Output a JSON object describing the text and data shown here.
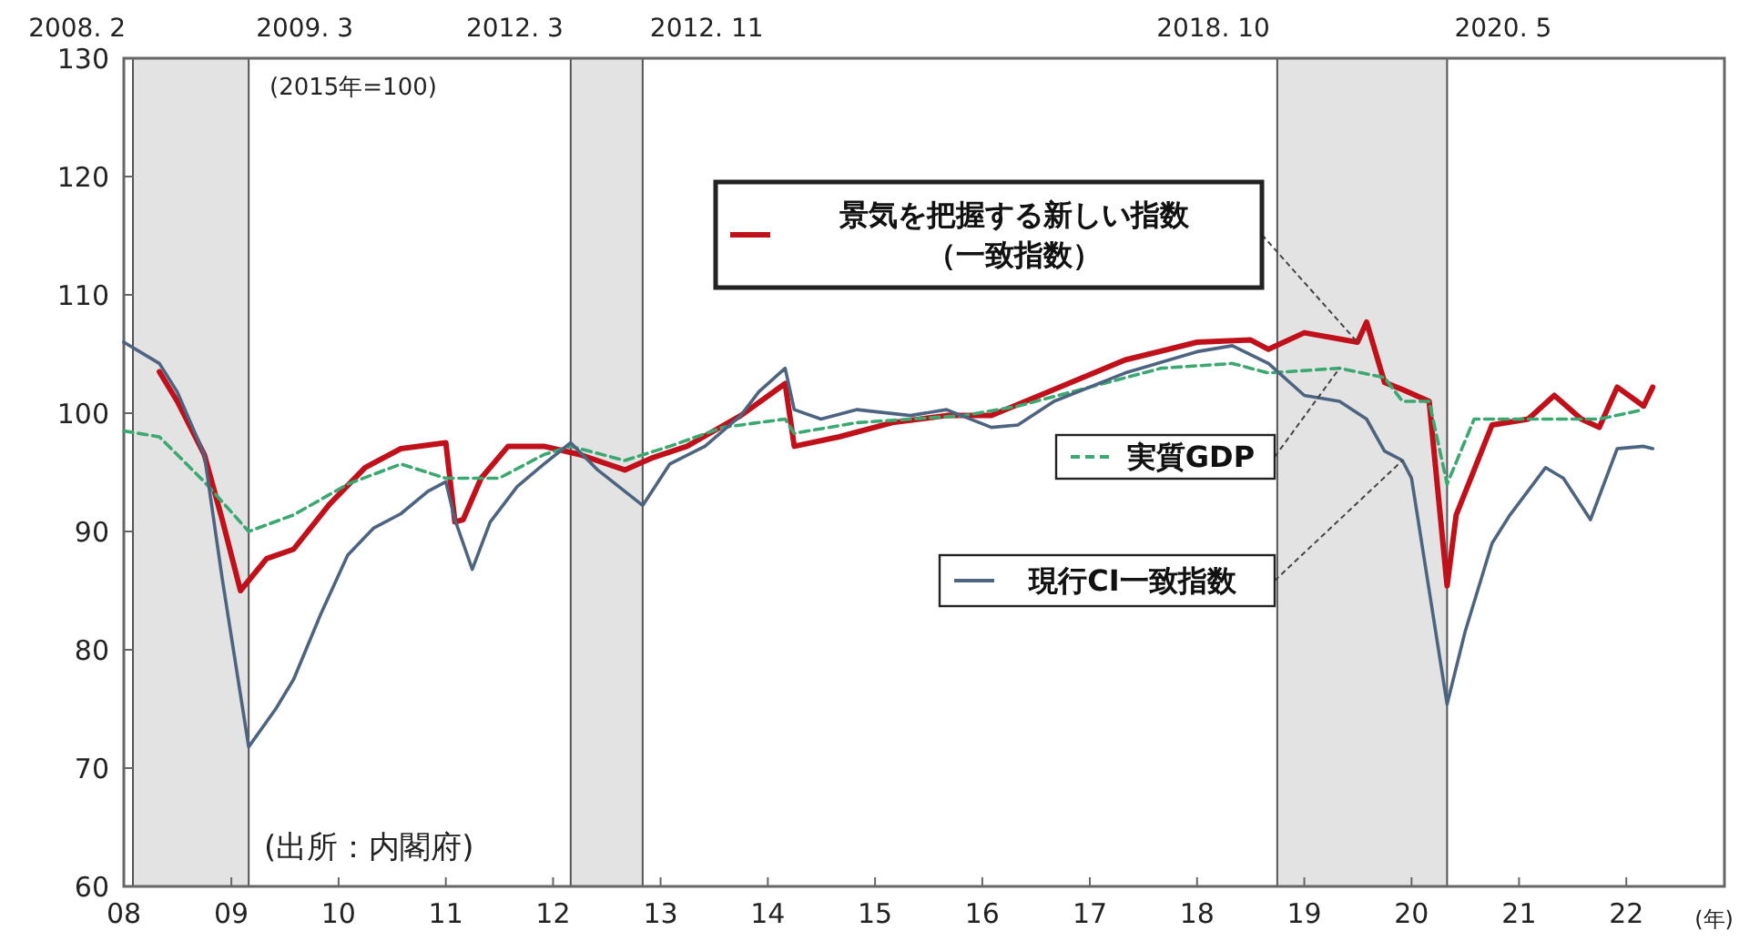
{
  "chart_data": {
    "type": "line",
    "xlabel": "(年)",
    "xlim": [
      "2008-01",
      "2022-12"
    ],
    "ylim": [
      60,
      130
    ],
    "xticks": [
      {
        "value": "2008-01",
        "label": "08"
      },
      {
        "value": "2009-01",
        "label": "09"
      },
      {
        "value": "2010-01",
        "label": "10"
      },
      {
        "value": "2011-01",
        "label": "11"
      },
      {
        "value": "2012-01",
        "label": "12"
      },
      {
        "value": "2013-01",
        "label": "13"
      },
      {
        "value": "2014-01",
        "label": "14"
      },
      {
        "value": "2015-01",
        "label": "15"
      },
      {
        "value": "2016-01",
        "label": "16"
      },
      {
        "value": "2017-01",
        "label": "17"
      },
      {
        "value": "2018-01",
        "label": "18"
      },
      {
        "value": "2019-01",
        "label": "19"
      },
      {
        "value": "2020-01",
        "label": "20"
      },
      {
        "value": "2021-01",
        "label": "21"
      },
      {
        "value": "2022-01",
        "label": "22"
      }
    ],
    "yticks": [
      60,
      70,
      80,
      90,
      100,
      110,
      120,
      130
    ],
    "grid": false,
    "legend": "center",
    "marker": "none",
    "series": [
      {
        "name": "景気を把握する新しい指数（一致指数）",
        "color": "#c0101a",
        "line_style": "solid",
        "x": [
          "2008-05",
          "2008-07",
          "2008-10",
          "2008-12",
          "2009-02",
          "2009-05",
          "2009-08",
          "2009-12",
          "2010-04",
          "2010-08",
          "2011-01",
          "2011-02",
          "2011-03",
          "2011-05",
          "2011-08",
          "2011-12",
          "2012-04",
          "2012-09",
          "2012-12",
          "2013-04",
          "2013-10",
          "2014-02",
          "2014-03",
          "2014-04",
          "2014-09",
          "2015-03",
          "2015-09",
          "2016-02",
          "2016-09",
          "2017-05",
          "2018-01",
          "2018-07",
          "2018-09",
          "2019-01",
          "2019-07",
          "2019-08",
          "2019-10",
          "2019-12",
          "2020-03",
          "2020-05",
          "2020-06",
          "2020-10",
          "2021-02",
          "2021-05",
          "2021-08",
          "2021-10",
          "2021-12",
          "2022-03",
          "2022-04"
        ],
        "values": [
          103.5,
          101,
          96.5,
          91,
          85,
          87.7,
          88.5,
          92.3,
          95.4,
          97,
          97.5,
          90.8,
          91,
          94.5,
          97.2,
          97.2,
          96.5,
          95.2,
          96.2,
          97.2,
          99.8,
          102,
          102.5,
          97.2,
          98,
          99.2,
          99.8,
          99.8,
          102,
          104.5,
          106,
          106.2,
          105.4,
          106.8,
          106,
          107.7,
          102.6,
          102,
          101,
          85.4,
          91.4,
          99,
          99.5,
          101.5,
          99.5,
          98.8,
          102.2,
          100.6,
          102.2
        ]
      },
      {
        "name": "実質GDP",
        "color": "#3aa870",
        "line_style": "dashed",
        "x": [
          "2008-01",
          "2008-05",
          "2008-10",
          "2009-03",
          "2009-08",
          "2010-02",
          "2010-08",
          "2011-01",
          "2011-07",
          "2011-12",
          "2012-03",
          "2012-09",
          "2013-02",
          "2013-08",
          "2014-03",
          "2014-04",
          "2014-11",
          "2015-11",
          "2016-05",
          "2017-01",
          "2017-09",
          "2018-05",
          "2018-09",
          "2019-05",
          "2019-10",
          "2019-12",
          "2020-03",
          "2020-05",
          "2020-08",
          "2021-04",
          "2021-10",
          "2022-03"
        ],
        "values": [
          98.5,
          98,
          94.2,
          90,
          91.4,
          94,
          95.7,
          94.5,
          94.5,
          96.5,
          97.2,
          96,
          97.2,
          98.8,
          99.5,
          98.3,
          99.2,
          99.8,
          100.6,
          102.2,
          103.8,
          104.2,
          103.4,
          103.8,
          103,
          101,
          101,
          94,
          99.5,
          99.5,
          99.5,
          100.3
        ]
      },
      {
        "name": "現行CI一致指数",
        "color": "#4d6480",
        "line_style": "solid",
        "x": [
          "2008-01",
          "2008-05",
          "2008-07",
          "2008-10",
          "2008-12",
          "2009-03",
          "2009-06",
          "2009-08",
          "2009-11",
          "2010-02",
          "2010-05",
          "2010-08",
          "2010-11",
          "2011-01",
          "2011-02",
          "2011-04",
          "2011-06",
          "2011-09",
          "2011-12",
          "2012-03",
          "2012-06",
          "2012-11",
          "2013-02",
          "2013-06",
          "2013-10",
          "2013-12",
          "2014-03",
          "2014-04",
          "2014-07",
          "2014-11",
          "2015-05",
          "2015-09",
          "2016-02",
          "2016-05",
          "2016-09",
          "2017-05",
          "2018-01",
          "2018-05",
          "2018-09",
          "2019-01",
          "2019-05",
          "2019-08",
          "2019-10",
          "2019-12",
          "2020-01",
          "2020-05",
          "2020-07",
          "2020-10",
          "2020-12",
          "2021-04",
          "2021-06",
          "2021-09",
          "2021-12",
          "2022-03",
          "2022-04"
        ],
        "values": [
          106,
          104.2,
          101.8,
          96.5,
          86,
          71.8,
          75,
          77.5,
          83,
          88,
          90.3,
          91.5,
          93.4,
          94.2,
          91,
          86.8,
          90.8,
          93.8,
          95.7,
          97.5,
          95.2,
          92.2,
          95.7,
          97.2,
          99.8,
          101.8,
          103.8,
          100.3,
          99.5,
          100.3,
          99.8,
          100.3,
          98.8,
          99,
          101,
          103.4,
          105.2,
          105.7,
          104.2,
          101.5,
          101,
          99.5,
          96.8,
          96,
          94.5,
          75.4,
          81.5,
          89,
          91.4,
          95.4,
          94.5,
          91,
          97,
          97.2,
          97
        ]
      }
    ],
    "bands": [
      {
        "axis": "x",
        "from": "2008-02",
        "to": "2009-03",
        "color": "#e3e3e3"
      },
      {
        "axis": "x",
        "from": "2012-03",
        "to": "2012-11",
        "color": "#e3e3e3"
      },
      {
        "axis": "x",
        "from": "2018-10",
        "to": "2020-05",
        "color": "#e3e3e3"
      }
    ],
    "ref_lines": [
      {
        "axis": "x",
        "value": "2008-02",
        "label": "2008. 2"
      },
      {
        "axis": "x",
        "value": "2009-03",
        "label": "2009. 3"
      },
      {
        "axis": "x",
        "value": "2012-03",
        "label": "2012. 3"
      },
      {
        "axis": "x",
        "value": "2012-11",
        "label": "2012. 11"
      },
      {
        "axis": "x",
        "value": "2018-10",
        "label": "2018. 10"
      },
      {
        "axis": "x",
        "value": "2020-05",
        "label": "2020. 5"
      }
    ],
    "annotations": [
      "(2015年=100)",
      "(出所：内閣府)"
    ]
  }
}
